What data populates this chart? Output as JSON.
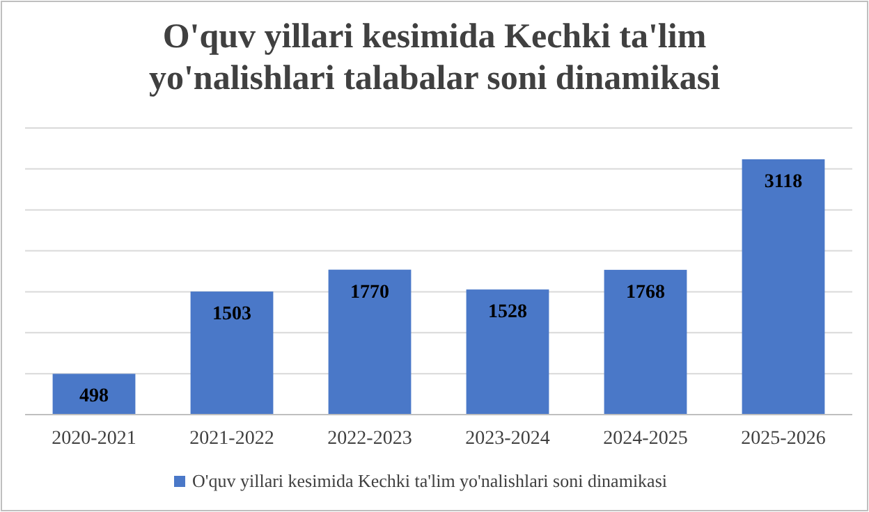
{
  "chart_data": {
    "type": "bar",
    "title": "O'quv yillari kesimida Kechki ta'lim yo'nalishlari talabalar soni dinamikasi",
    "categories": [
      "2020-2021",
      "2021-2022",
      "2022-2023",
      "2023-2024",
      "2024-2025",
      "2025-2026"
    ],
    "series": [
      {
        "name": "O'quv yillari kesimida Kechki ta'lim yo'nalishlari soni dinamikasi",
        "color": "#4a78c8",
        "values": [
          498,
          1503,
          1770,
          1528,
          1768,
          3118
        ]
      }
    ],
    "ylim": [
      0,
      3500
    ],
    "yticks": [
      {
        "value": 0,
        "label": null
      },
      {
        "value": 500,
        "label": null
      },
      {
        "value": 1000,
        "label": null
      },
      {
        "value": 1500,
        "label": null
      },
      {
        "value": 2000,
        "label": null
      },
      {
        "value": 2500,
        "label": null
      },
      {
        "value": 3000,
        "label": null
      },
      {
        "value": 3500,
        "label": null
      }
    ],
    "tick_labels": "x",
    "grid": "y",
    "data_labels": true,
    "legend": "bottom"
  }
}
